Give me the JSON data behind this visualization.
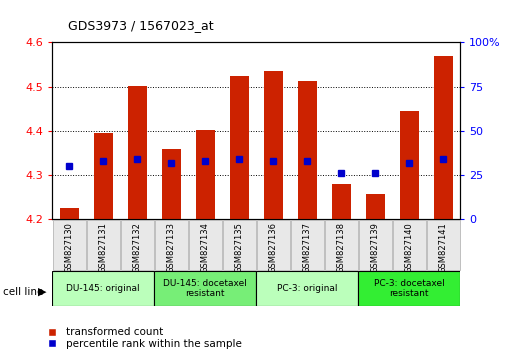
{
  "title": "GDS3973 / 1567023_at",
  "samples": [
    "GSM827130",
    "GSM827131",
    "GSM827132",
    "GSM827133",
    "GSM827134",
    "GSM827135",
    "GSM827136",
    "GSM827137",
    "GSM827138",
    "GSM827139",
    "GSM827140",
    "GSM827141"
  ],
  "transformed_count": [
    4.225,
    4.395,
    4.502,
    4.36,
    4.402,
    4.525,
    4.535,
    4.514,
    4.28,
    4.258,
    4.445,
    4.57
  ],
  "percentile_rank": [
    30,
    33,
    34,
    32,
    33,
    34,
    33,
    33,
    26,
    26,
    32,
    34
  ],
  "bar_bottom": 4.2,
  "ylim": [
    4.2,
    4.6
  ],
  "ylim2": [
    0,
    100
  ],
  "yticks": [
    4.2,
    4.3,
    4.4,
    4.5,
    4.6
  ],
  "yticks2": [
    0,
    25,
    50,
    75,
    100
  ],
  "bar_color": "#cc2200",
  "dot_color": "#0000cc",
  "cell_line_groups": [
    {
      "label": "DU-145: original",
      "start": 0,
      "end": 3,
      "color": "#bbffbb"
    },
    {
      "label": "DU-145: docetaxel\nresistant",
      "start": 3,
      "end": 6,
      "color": "#77ee77"
    },
    {
      "label": "PC-3: original",
      "start": 6,
      "end": 9,
      "color": "#bbffbb"
    },
    {
      "label": "PC-3: docetaxel\nresistant",
      "start": 9,
      "end": 12,
      "color": "#33ee33"
    }
  ],
  "legend_red": "transformed count",
  "legend_blue": "percentile rank within the sample",
  "cell_line_label": "cell line",
  "bar_width": 0.55,
  "fig_width": 5.23,
  "fig_height": 3.54
}
